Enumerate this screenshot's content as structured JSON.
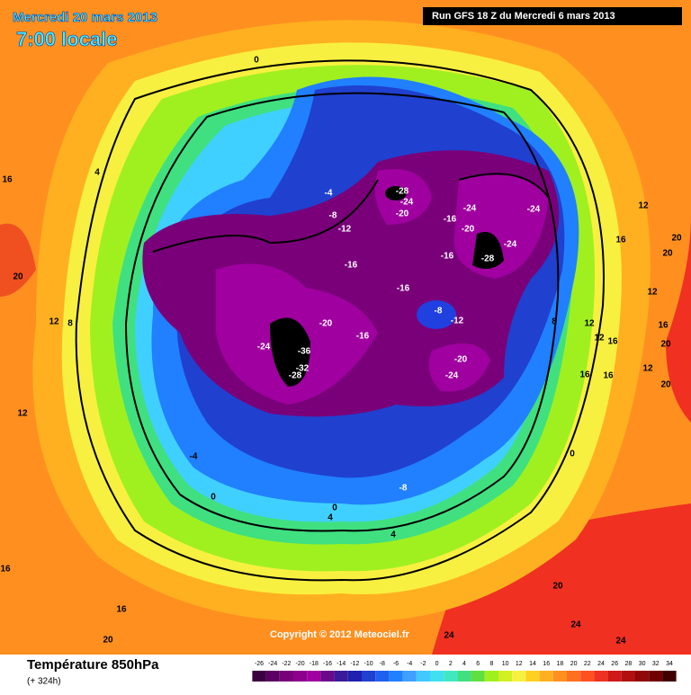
{
  "header": {
    "date": "Mercredi 20 mars 2013",
    "time": "7:00 locale",
    "run": "Run GFS 18 Z du Mercredi 6 mars 2013"
  },
  "footer": {
    "title": "Température 850hPa",
    "subtitle": "(+ 324h)",
    "copyright": "Copyright © 2012 Meteociel.fr"
  },
  "colorbar": {
    "ticks": [
      -26,
      -24,
      -22,
      -20,
      -18,
      -16,
      -14,
      -12,
      -10,
      -8,
      -6,
      -4,
      -2,
      0,
      2,
      4,
      6,
      8,
      10,
      12,
      14,
      16,
      18,
      20,
      22,
      24,
      26,
      28,
      30,
      32,
      34
    ],
    "colors": [
      "#3c0040",
      "#5a0060",
      "#780078",
      "#8c008c",
      "#a000a0",
      "#6a0a8a",
      "#3a1a9a",
      "#2020b0",
      "#2040d0",
      "#2060f0",
      "#2080ff",
      "#40a0ff",
      "#40c8ff",
      "#40e0f0",
      "#40e8c0",
      "#40e080",
      "#60e040",
      "#a0f020",
      "#d0f020",
      "#f8f040",
      "#ffd020",
      "#ffb020",
      "#ff9020",
      "#ff7020",
      "#ff5020",
      "#f03020",
      "#d01818",
      "#b01010",
      "#900808",
      "#700000",
      "#400000"
    ]
  },
  "contour_labels": [
    16,
    4,
    20,
    12,
    8,
    12,
    -4,
    0,
    16,
    16,
    20,
    0,
    -4,
    -8,
    -12,
    -16,
    -28,
    -24,
    -20,
    -16,
    -24,
    -20,
    -16,
    -28,
    -24,
    -24,
    -16,
    -8,
    -12,
    -20,
    -16,
    -24,
    -36,
    -32,
    -28,
    -20,
    -24,
    -8,
    0,
    4,
    4,
    8,
    0,
    12,
    16,
    20,
    12,
    20,
    12,
    16,
    12,
    16,
    20,
    16,
    16,
    12,
    20,
    20,
    24,
    24,
    24
  ]
}
